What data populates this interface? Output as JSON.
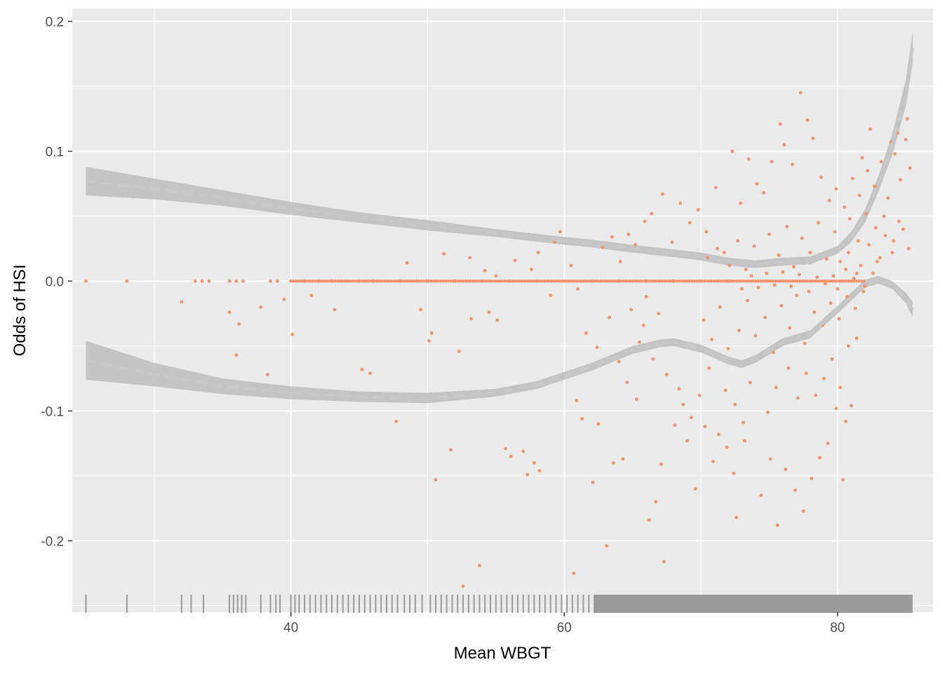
{
  "chart_data": {
    "type": "scatter",
    "title": "",
    "xlabel": "Mean WBGT",
    "ylabel": "Odds of HSI",
    "xlim": [
      24,
      87
    ],
    "ylim": [
      -0.255,
      0.21
    ],
    "x_ticks": [
      40,
      60,
      80
    ],
    "x_tick_labels": [
      "40",
      "60",
      "80"
    ],
    "y_ticks": [
      0.2,
      0.1,
      0.0,
      -0.1,
      -0.2
    ],
    "y_tick_labels": [
      "0.2",
      "0.1",
      "0.0",
      "-0.1",
      "-0.2"
    ],
    "grid": true,
    "legend": "none",
    "colors": {
      "panel": "#ebebeb",
      "grid": "#ffffff",
      "points": "#f0926a",
      "band": "#bdbdbd",
      "line": "#c8c8c8",
      "rug": "#9a9a9a"
    },
    "upper_curve": {
      "x": [
        25,
        30,
        35,
        40,
        45,
        50,
        55,
        60,
        62,
        65,
        70,
        72,
        74,
        76,
        78,
        80,
        81,
        82,
        83,
        84,
        85,
        85.5
      ],
      "y": [
        0.077,
        0.071,
        0.064,
        0.056,
        0.049,
        0.043,
        0.037,
        0.031,
        0.029,
        0.025,
        0.019,
        0.015,
        0.013,
        0.015,
        0.016,
        0.024,
        0.034,
        0.05,
        0.075,
        0.105,
        0.145,
        0.18
      ],
      "band_halfwidth": [
        0.011,
        0.008,
        0.006,
        0.005,
        0.004,
        0.004,
        0.003,
        0.003,
        0.003,
        0.003,
        0.003,
        0.003,
        0.003,
        0.003,
        0.003,
        0.003,
        0.004,
        0.005,
        0.006,
        0.008,
        0.01,
        0.012
      ]
    },
    "lower_curve": {
      "x": [
        25,
        30,
        35,
        40,
        45,
        50,
        55,
        58,
        60,
        62,
        65,
        67,
        68,
        70,
        72,
        73,
        74,
        76,
        78,
        80,
        81,
        82,
        83,
        84,
        85,
        85.5
      ],
      "y": [
        -0.061,
        -0.072,
        -0.081,
        -0.086,
        -0.089,
        -0.09,
        -0.086,
        -0.08,
        -0.073,
        -0.066,
        -0.053,
        -0.048,
        -0.047,
        -0.052,
        -0.061,
        -0.064,
        -0.06,
        -0.047,
        -0.041,
        -0.022,
        -0.012,
        -0.002,
        0.001,
        -0.003,
        -0.013,
        -0.022
      ],
      "band_halfwidth": [
        0.015,
        0.009,
        0.006,
        0.005,
        0.004,
        0.004,
        0.003,
        0.003,
        0.003,
        0.003,
        0.003,
        0.003,
        0.003,
        0.003,
        0.003,
        0.003,
        0.003,
        0.003,
        0.003,
        0.003,
        0.003,
        0.003,
        0.003,
        0.003,
        0.004,
        0.006
      ]
    },
    "points": [
      [
        25,
        0
      ],
      [
        28,
        0
      ],
      [
        33,
        0
      ],
      [
        33.5,
        0
      ],
      [
        34,
        0
      ],
      [
        35.5,
        0
      ],
      [
        36,
        0
      ],
      [
        36.5,
        0
      ],
      [
        38.5,
        0
      ],
      [
        39,
        0
      ],
      [
        40,
        0
      ],
      [
        41,
        0
      ],
      [
        42,
        0
      ],
      [
        43,
        0
      ],
      [
        44,
        0
      ],
      [
        45,
        0
      ],
      [
        46,
        0
      ],
      [
        48,
        0
      ],
      [
        50,
        0
      ],
      [
        52,
        0
      ],
      [
        54,
        0
      ],
      [
        56,
        0
      ],
      [
        58,
        0
      ],
      [
        60,
        0
      ],
      [
        62,
        0
      ],
      [
        64,
        0
      ],
      [
        66,
        0
      ],
      [
        68,
        0
      ],
      [
        70,
        0
      ],
      [
        72,
        0
      ],
      [
        32,
        -0.016
      ],
      [
        35.5,
        -0.024
      ],
      [
        36,
        -0.057
      ],
      [
        36.2,
        -0.033
      ],
      [
        37.8,
        -0.02
      ],
      [
        38.3,
        -0.072
      ],
      [
        39.5,
        -0.014
      ],
      [
        40.1,
        -0.041
      ],
      [
        41.5,
        -0.011
      ],
      [
        43.2,
        -0.022
      ],
      [
        45.2,
        -0.068
      ],
      [
        45.8,
        -0.071
      ],
      [
        47.7,
        -0.108
      ],
      [
        49.5,
        -0.022
      ],
      [
        50.1,
        -0.046
      ],
      [
        50.3,
        -0.04
      ],
      [
        50.6,
        -0.153
      ],
      [
        51.7,
        -0.13
      ],
      [
        52.3,
        -0.054
      ],
      [
        52.6,
        -0.235
      ],
      [
        53.2,
        -0.029
      ],
      [
        53.8,
        -0.219
      ],
      [
        54.5,
        -0.024
      ],
      [
        55.1,
        -0.03
      ],
      [
        55.7,
        -0.129
      ],
      [
        56.1,
        -0.135
      ],
      [
        57,
        -0.131
      ],
      [
        57.3,
        -0.149
      ],
      [
        57.8,
        -0.14
      ],
      [
        58.2,
        -0.146
      ],
      [
        48.5,
        0.014
      ],
      [
        51.2,
        0.021
      ],
      [
        53.1,
        0.018
      ],
      [
        54.2,
        0.008
      ],
      [
        56.4,
        0.016
      ],
      [
        57.6,
        0.009
      ],
      [
        58.1,
        0.022
      ],
      [
        59.3,
        0.03
      ],
      [
        59.7,
        0.038
      ],
      [
        60.5,
        0.012
      ],
      [
        60.9,
        -0.092
      ],
      [
        61.3,
        -0.106
      ],
      [
        62.1,
        -0.155
      ],
      [
        62.5,
        -0.11
      ],
      [
        63.1,
        -0.204
      ],
      [
        63.6,
        -0.14
      ],
      [
        64.3,
        -0.137
      ],
      [
        64.9,
        -0.022
      ],
      [
        65.3,
        -0.091
      ],
      [
        65.8,
        -0.034
      ],
      [
        66.2,
        -0.184
      ],
      [
        66.7,
        -0.17
      ],
      [
        67.1,
        -0.141
      ],
      [
        67.3,
        -0.216
      ],
      [
        68.1,
        -0.111
      ],
      [
        68.4,
        -0.083
      ],
      [
        69,
        -0.123
      ],
      [
        69.6,
        -0.16
      ],
      [
        70.3,
        -0.112
      ],
      [
        70.9,
        -0.139
      ],
      [
        60.7,
        -0.225
      ],
      [
        61,
        -0.006
      ],
      [
        62.8,
        0.026
      ],
      [
        63.5,
        0.034
      ],
      [
        64.1,
        0.015
      ],
      [
        64.7,
        0.036
      ],
      [
        65.2,
        0.028
      ],
      [
        65.9,
        0.046
      ],
      [
        66.4,
        0.052
      ],
      [
        67.2,
        0.067
      ],
      [
        67.9,
        0.03
      ],
      [
        68.5,
        0.06
      ],
      [
        69.2,
        0.045
      ],
      [
        69.8,
        0.055
      ],
      [
        70.4,
        0.038
      ],
      [
        71.1,
        0.072
      ],
      [
        71.7,
        0.022
      ],
      [
        72.3,
        0.1
      ],
      [
        72.9,
        0.06
      ],
      [
        73.5,
        0.094
      ],
      [
        74.1,
        0.075
      ],
      [
        74.6,
        0.068
      ],
      [
        75.2,
        0.092
      ],
      [
        75.8,
        0.121
      ],
      [
        76.1,
        0.105
      ],
      [
        76.7,
        0.09
      ],
      [
        77.3,
        0.145
      ],
      [
        77.8,
        0.124
      ],
      [
        78.2,
        0.11
      ],
      [
        78.8,
        0.08
      ],
      [
        73.8,
        -0.25
      ],
      [
        72.6,
        -0.182
      ],
      [
        73.2,
        -0.123
      ],
      [
        74.4,
        -0.165
      ],
      [
        75.1,
        -0.137
      ],
      [
        75.6,
        -0.188
      ],
      [
        76.2,
        -0.145
      ],
      [
        76.9,
        -0.161
      ],
      [
        77.5,
        -0.177
      ],
      [
        78.1,
        -0.152
      ],
      [
        78.7,
        -0.136
      ],
      [
        79.3,
        -0.125
      ],
      [
        79.9,
        -0.098
      ],
      [
        80.4,
        -0.153
      ],
      [
        80.6,
        -0.108
      ],
      [
        81,
        -0.096
      ],
      [
        71.8,
        -0.084
      ],
      [
        72.5,
        -0.095
      ],
      [
        73.6,
        -0.078
      ],
      [
        74.9,
        -0.101
      ],
      [
        75.5,
        -0.082
      ],
      [
        76.4,
        -0.067
      ],
      [
        77.1,
        -0.09
      ],
      [
        77.7,
        -0.071
      ],
      [
        78.4,
        -0.088
      ],
      [
        79,
        -0.075
      ],
      [
        79.6,
        -0.06
      ],
      [
        80.2,
        -0.082
      ],
      [
        80.8,
        -0.05
      ],
      [
        81.4,
        -0.044
      ],
      [
        70.2,
        -0.03
      ],
      [
        70.8,
        -0.045
      ],
      [
        71.4,
        -0.02
      ],
      [
        72,
        -0.052
      ],
      [
        72.8,
        -0.038
      ],
      [
        73.4,
        -0.015
      ],
      [
        74,
        -0.042
      ],
      [
        74.7,
        -0.028
      ],
      [
        75.3,
        -0.055
      ],
      [
        75.9,
        -0.019
      ],
      [
        76.5,
        -0.036
      ],
      [
        77,
        -0.011
      ],
      [
        77.6,
        -0.048
      ],
      [
        78.3,
        -0.024
      ],
      [
        78.9,
        -0.034
      ],
      [
        79.5,
        -0.017
      ],
      [
        80.1,
        -0.029
      ],
      [
        80.7,
        -0.012
      ],
      [
        81.3,
        -0.021
      ],
      [
        81.9,
        -0.008
      ],
      [
        70.5,
        0.018
      ],
      [
        71.2,
        0.025
      ],
      [
        72.1,
        0.012
      ],
      [
        72.7,
        0.031
      ],
      [
        73.3,
        0.009
      ],
      [
        73.9,
        0.027
      ],
      [
        74.5,
        0.014
      ],
      [
        75,
        0.036
      ],
      [
        75.7,
        0.02
      ],
      [
        76.3,
        0.042
      ],
      [
        76.8,
        0.011
      ],
      [
        77.4,
        0.033
      ],
      [
        78,
        0.022
      ],
      [
        78.6,
        0.045
      ],
      [
        79.2,
        0.017
      ],
      [
        79.8,
        0.038
      ],
      [
        80.3,
        0.026
      ],
      [
        80.9,
        0.048
      ],
      [
        81.5,
        0.031
      ],
      [
        82.1,
        0.052
      ],
      [
        79.4,
        0.062
      ],
      [
        79.9,
        0.071
      ],
      [
        80.5,
        0.057
      ],
      [
        81.1,
        0.079
      ],
      [
        81.6,
        0.066
      ],
      [
        82.2,
        0.085
      ],
      [
        82.7,
        0.073
      ],
      [
        83.2,
        0.092
      ],
      [
        83.7,
        0.064
      ],
      [
        84.2,
        0.098
      ],
      [
        84.6,
        0.078
      ],
      [
        85,
        0.109
      ],
      [
        85.3,
        0.087
      ],
      [
        85.1,
        0.125
      ],
      [
        84.4,
        0.114
      ],
      [
        83.9,
        0.107
      ],
      [
        82.4,
        0.117
      ],
      [
        81.8,
        0.095
      ],
      [
        83.4,
        0.05
      ],
      [
        84.8,
        0.04
      ],
      [
        85.2,
        0.025
      ],
      [
        84.1,
        0.031
      ],
      [
        83.1,
        0.018
      ],
      [
        82.6,
        0.006
      ],
      [
        82,
        -0.004
      ],
      [
        81.2,
        0.002
      ],
      [
        80.6,
        0.009
      ],
      [
        80,
        -0.006
      ],
      [
        79.7,
        0.004
      ],
      [
        79.1,
        -0.002
      ],
      [
        78.5,
        0.003
      ],
      [
        77.9,
        -0.008
      ],
      [
        77.2,
        0.005
      ],
      [
        76.6,
        -0.004
      ],
      [
        76,
        0.007
      ],
      [
        75.4,
        -0.003
      ],
      [
        74.8,
        0.006
      ],
      [
        74.2,
        -0.005
      ],
      [
        73.7,
        0.004
      ],
      [
        73,
        -0.006
      ],
      [
        81.7,
        0.012
      ],
      [
        82.3,
        0.028
      ],
      [
        82.9,
        0.015
      ],
      [
        83.5,
        0.035
      ],
      [
        84,
        0.022
      ],
      [
        84.5,
        0.046
      ],
      [
        80.2,
        0.015
      ],
      [
        80.8,
        0.022
      ],
      [
        81.4,
        0.006
      ],
      [
        82.8,
        0.041
      ],
      [
        66.5,
        -0.06
      ],
      [
        67.5,
        -0.072
      ],
      [
        68.7,
        -0.095
      ],
      [
        69.3,
        -0.105
      ],
      [
        69.9,
        -0.088
      ],
      [
        70.6,
        -0.067
      ],
      [
        71.3,
        -0.118
      ],
      [
        71.9,
        -0.128
      ],
      [
        72.4,
        -0.148
      ],
      [
        73.1,
        -0.109
      ],
      [
        55,
        0.004
      ],
      [
        59,
        -0.011
      ],
      [
        61.6,
        -0.04
      ],
      [
        62.4,
        -0.051
      ],
      [
        63.3,
        -0.028
      ],
      [
        64,
        -0.062
      ],
      [
        64.6,
        -0.078
      ],
      [
        65.5,
        -0.047
      ],
      [
        66,
        -0.012
      ],
      [
        66.9,
        -0.025
      ]
    ],
    "rug_x": [
      25,
      28,
      32,
      32.7,
      33.6,
      35.5,
      35.8,
      36.1,
      36.4,
      36.7,
      37.8,
      38.5,
      38.9,
      39.2,
      40,
      40.3,
      40.6,
      41,
      41.4,
      41.8,
      42.2,
      42.6,
      43,
      43.4,
      43.8,
      44.2,
      44.6,
      45,
      45.4,
      45.8,
      46.2,
      46.6,
      47,
      47.4,
      47.8,
      48.3,
      48.7,
      49.1,
      49.6,
      50.2,
      50.6,
      51,
      51.4,
      51.8,
      52.2,
      52.6,
      53,
      53.4,
      53.8,
      54.2,
      54.6,
      55,
      55.4,
      55.8,
      56.2,
      56.6,
      57,
      57.4,
      57.8,
      58.2,
      58.6,
      59,
      59.4,
      59.8,
      60.2,
      60.6,
      61,
      61.4,
      61.8,
      62.2,
      62.6,
      63,
      63.4,
      63.8,
      64.2,
      64.6,
      65,
      65.4,
      65.8,
      66.2,
      66.6,
      67,
      67.4,
      67.8,
      68.2,
      68.6,
      69,
      69.4,
      69.8,
      70.2,
      70.6,
      71,
      71.4,
      71.8,
      72.2,
      72.6,
      73,
      73.4,
      73.8,
      74.2,
      74.6,
      75,
      75.4,
      75.8,
      76.2,
      76.6,
      77,
      77.4,
      77.8,
      78.2,
      78.6,
      79,
      79.4,
      79.8,
      80.2,
      80.6,
      81,
      81.4,
      81.8,
      82.2,
      82.6,
      83,
      83.4,
      83.8,
      84.2,
      84.6,
      85,
      85.4
    ],
    "rug_dense_start": 62.2,
    "rug_dense_end": 85.5
  }
}
